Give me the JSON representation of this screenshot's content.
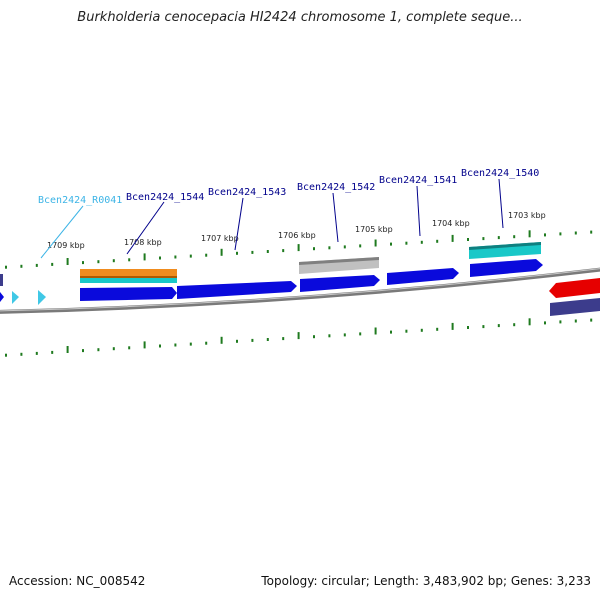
{
  "title": "Burkholderia cenocepacia HI2424 chromosome 1, complete seque...",
  "footer": {
    "accession": "Accession: NC_008542",
    "topology": "Topology: circular; Length: 3,483,902 bp; Genes: 3,233"
  },
  "colors": {
    "backbone": "#808080",
    "tick": "#1f7a1f",
    "gene_blue": "#0a0adc",
    "gene_cyan": "#19c8c8",
    "gene_orange": "#f08c1e",
    "gene_gray": "#a0a0a0",
    "gene_red": "#e60000",
    "gene_purple": "#3c3c8c",
    "trna": "#40c8e6",
    "label_dark": "#00008b",
    "label_light": "#3cb4e6"
  },
  "kbp_labels": [
    "1709 kbp",
    "1708 kbp",
    "1707 kbp",
    "1706 kbp",
    "1705 kbp",
    "1704 kbp",
    "1703 kbp"
  ],
  "gene_labels": [
    "Bcen2424_R0041",
    "Bcen2424_1544",
    "Bcen2424_1543",
    "Bcen2424_1542",
    "Bcen2424_1541",
    "Bcen2424_1540"
  ]
}
